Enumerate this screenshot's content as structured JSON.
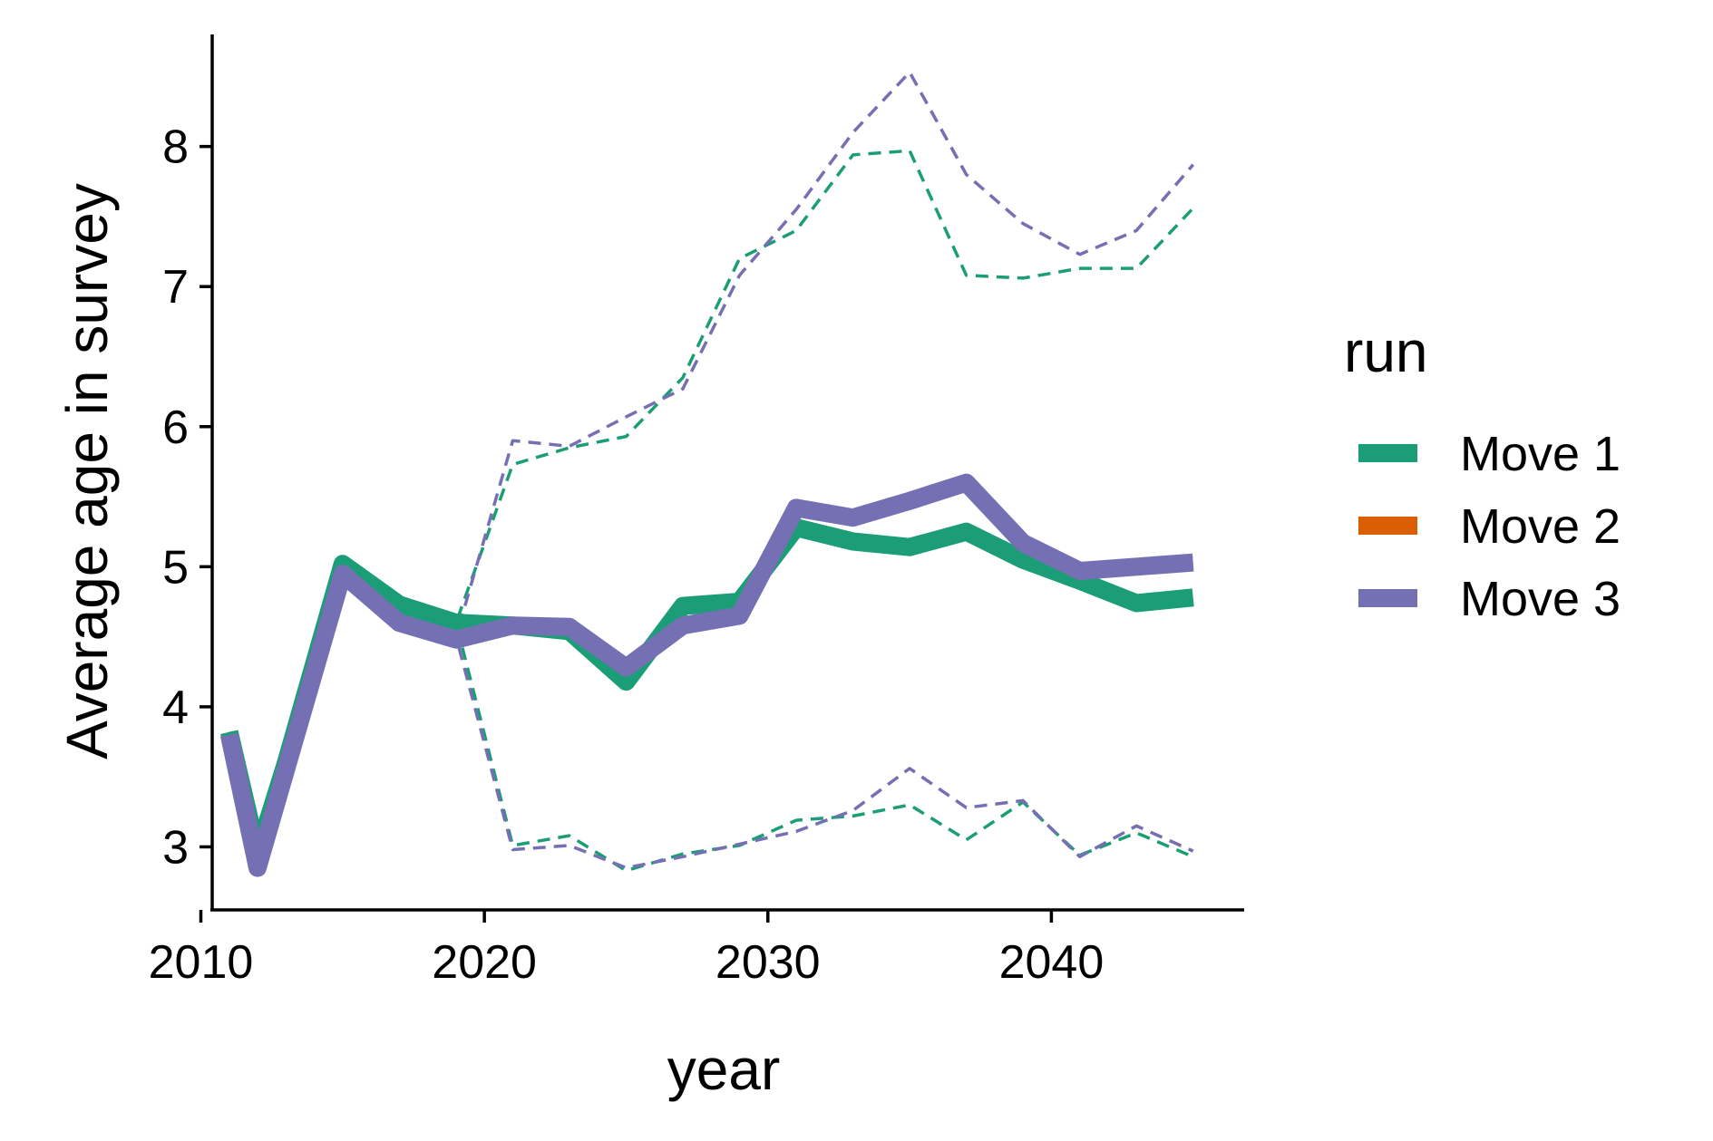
{
  "chart_data": {
    "type": "line",
    "xlabel": "year",
    "ylabel": "Average age in survey",
    "xlim": [
      2010.4,
      2046.8
    ],
    "ylim": [
      2.55,
      8.8
    ],
    "xticks": [
      2010,
      2020,
      2030,
      2040
    ],
    "yticks": [
      3,
      4,
      5,
      6,
      7,
      8
    ],
    "legend": {
      "title": "run",
      "position": "right"
    },
    "series": [
      {
        "name": "Move 1",
        "color": "#1b9e77",
        "x": [
          2011,
          2012,
          2013,
          2015,
          2017,
          2019,
          2021,
          2023,
          2025,
          2027,
          2029,
          2031,
          2033,
          2035,
          2037,
          2039,
          2041,
          2043,
          2045
        ],
        "values": [
          3.82,
          2.95,
          3.6,
          5.02,
          4.73,
          4.6,
          4.58,
          4.54,
          4.18,
          4.72,
          4.75,
          5.28,
          5.18,
          5.14,
          5.25,
          5.05,
          4.9,
          4.74,
          4.78
        ],
        "lower": [
          3.82,
          2.95,
          3.6,
          5.02,
          4.7,
          4.6,
          3.01,
          3.08,
          2.83,
          2.95,
          3.01,
          3.19,
          3.22,
          3.3,
          3.05,
          3.32,
          2.94,
          3.1,
          2.93
        ],
        "upper": [
          3.82,
          2.95,
          3.6,
          5.02,
          4.7,
          4.6,
          5.73,
          5.85,
          5.93,
          6.35,
          7.2,
          7.4,
          7.94,
          7.97,
          7.08,
          7.06,
          7.13,
          7.13,
          7.56
        ]
      },
      {
        "name": "Move 2",
        "color": "#d95f02",
        "x": [],
        "values": []
      },
      {
        "name": "Move 3",
        "color": "#7570b3",
        "x": [
          2011,
          2012,
          2013,
          2015,
          2017,
          2019,
          2021,
          2023,
          2025,
          2027,
          2029,
          2031,
          2033,
          2035,
          2037,
          2039,
          2041,
          2043,
          2045
        ],
        "values": [
          3.8,
          2.85,
          3.55,
          4.95,
          4.6,
          4.48,
          4.58,
          4.57,
          4.28,
          4.58,
          4.65,
          5.42,
          5.35,
          5.47,
          5.6,
          5.17,
          4.97,
          5.0,
          5.03
        ],
        "lower": [
          3.8,
          2.85,
          3.55,
          4.95,
          4.68,
          4.5,
          2.98,
          3.01,
          2.85,
          2.93,
          3.02,
          3.11,
          3.26,
          3.56,
          3.28,
          3.33,
          2.93,
          3.15,
          2.97
        ],
        "upper": [
          3.8,
          2.85,
          3.55,
          4.95,
          4.68,
          4.5,
          5.9,
          5.86,
          6.07,
          6.27,
          7.08,
          7.55,
          8.1,
          8.53,
          7.8,
          7.45,
          7.23,
          7.4,
          7.87
        ]
      }
    ]
  }
}
